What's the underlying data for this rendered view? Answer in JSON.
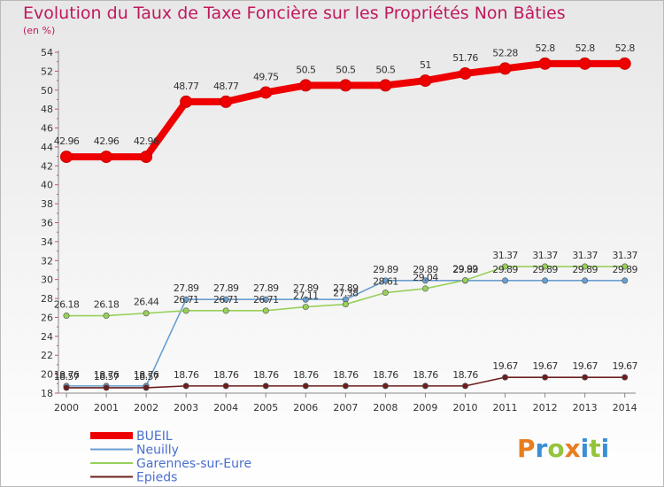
{
  "chart_data": {
    "type": "line",
    "title": "Evolution du Taux de Taxe Foncière sur les Propriétés Non Bâties",
    "ylabel": "(en %)",
    "xlabel": "",
    "x": [
      2000,
      2001,
      2002,
      2003,
      2004,
      2005,
      2006,
      2007,
      2008,
      2009,
      2010,
      2011,
      2012,
      2013,
      2014
    ],
    "ylim": [
      18,
      54
    ],
    "yticks": [
      18,
      20,
      22,
      24,
      26,
      28,
      30,
      32,
      34,
      36,
      38,
      40,
      42,
      44,
      46,
      48,
      50,
      52,
      54
    ],
    "series": [
      {
        "name": "BUEIL",
        "color": "#ee0000",
        "values": [
          42.96,
          42.96,
          42.96,
          48.77,
          48.77,
          49.75,
          50.5,
          50.5,
          50.5,
          51,
          51.76,
          52.28,
          52.8,
          52.8,
          52.8
        ],
        "labels": [
          "42.96",
          "42.96",
          "42.96",
          "48.77",
          "48.77",
          "49.75",
          "50.5",
          "50.5",
          "50.5",
          "51",
          "51.76",
          "52.28",
          "52.8",
          "52.8",
          "52.8"
        ]
      },
      {
        "name": "Neuilly",
        "color": "#6a9fd0",
        "values": [
          18.76,
          18.76,
          18.76,
          27.89,
          27.89,
          27.89,
          27.89,
          27.89,
          29.89,
          29.89,
          29.89,
          29.89,
          29.89,
          29.89,
          29.89
        ],
        "labels": [
          "18.76",
          "18.76",
          "18.76",
          "27.89",
          "27.89",
          "27.89",
          "27.89",
          "27.89",
          "29.89",
          "29.89",
          "29.89",
          "29.89",
          "29.89",
          "29.89",
          "29.89"
        ]
      },
      {
        "name": "Garennes-sur-Eure",
        "color": "#98d05a",
        "values": [
          26.18,
          26.18,
          26.44,
          26.71,
          26.71,
          26.71,
          27.11,
          27.38,
          28.61,
          29.04,
          29.92,
          31.37,
          31.37,
          31.37,
          31.37
        ],
        "labels": [
          "26.18",
          "26.18",
          "26.44",
          "26.71",
          "26.71",
          "26.71",
          "27.11",
          "27.38",
          "28.61",
          "29.04",
          "29.92",
          "31.37",
          "31.37",
          "31.37",
          "31.37"
        ]
      },
      {
        "name": "Epieds",
        "color": "#6b1f1f",
        "values": [
          18.57,
          18.57,
          18.57,
          18.76,
          18.76,
          18.76,
          18.76,
          18.76,
          18.76,
          18.76,
          18.76,
          19.67,
          19.67,
          19.67,
          19.67
        ],
        "labels": [
          "18.57",
          "18.57",
          "18.57",
          "18.76",
          "18.76",
          "18.76",
          "18.76",
          "18.76",
          "18.76",
          "18.76",
          "18.76",
          "19.67",
          "19.67",
          "19.67",
          "19.67"
        ]
      }
    ]
  },
  "branding": {
    "logo_letters": [
      "P",
      "r",
      "o",
      "x",
      "i",
      "t",
      "i"
    ],
    "logo_colors": [
      "#e97d1f",
      "#3a8fd6",
      "#94c43b",
      "#e97d1f",
      "#3a8fd6",
      "#94c43b",
      "#3a8fd6"
    ]
  }
}
